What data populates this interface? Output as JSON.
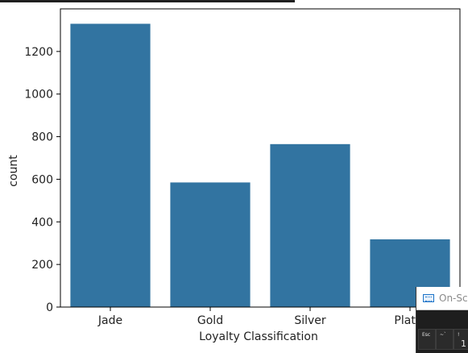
{
  "chart_data": {
    "type": "bar",
    "categories": [
      "Jade",
      "Gold",
      "Silver",
      "Platinum"
    ],
    "tick_labels_shown": [
      "Jade",
      "Gold",
      "Silver",
      "Platin"
    ],
    "values": [
      1330,
      585,
      765,
      318
    ],
    "xlabel": "Loyalty Classification",
    "ylabel": "count",
    "ylim": [
      0,
      1400
    ],
    "yticks": [
      0,
      200,
      400,
      600,
      800,
      1000,
      1200
    ],
    "bar_color": "#3274a1",
    "grid": false,
    "legend": "none"
  },
  "overlay": {
    "title": "On-Scr",
    "keys": [
      {
        "top": "Esc",
        "main": ""
      },
      {
        "top": "~`",
        "main": ""
      },
      {
        "top": "!",
        "main": "1"
      }
    ]
  }
}
